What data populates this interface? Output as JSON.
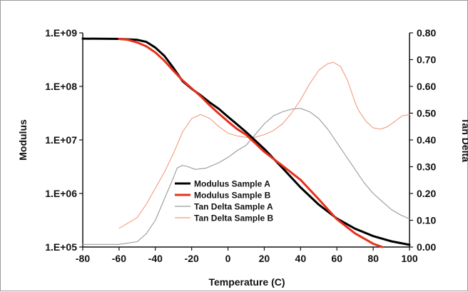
{
  "chart_data": {
    "type": "line",
    "xlabel": "Temperature (C)",
    "ylabel_left": "Modulus",
    "ylabel_right": "Tan Delta",
    "xlim": [
      -80,
      100
    ],
    "x_ticks": [
      "-80",
      "-60",
      "-40",
      "-20",
      "0",
      "20",
      "40",
      "60",
      "80",
      "100"
    ],
    "y_left_scale": "log",
    "y_left_lim": [
      100000,
      1000000000
    ],
    "y_left_ticks": [
      "1.E+05",
      "1.E+06",
      "1.E+07",
      "1.E+08",
      "1.E+09"
    ],
    "y_right_lim": [
      0,
      0.8
    ],
    "y_right_ticks": [
      "0.00",
      "0.10",
      "0.20",
      "0.30",
      "0.40",
      "0.50",
      "0.60",
      "0.70",
      "0.80"
    ],
    "grid": false,
    "legend_position": "lower-left",
    "series": [
      {
        "name": "Modulus Sample A",
        "axis": "left",
        "color": "#000000",
        "style": "thick",
        "points": [
          [
            -80,
            780000000
          ],
          [
            -60,
            770000000
          ],
          [
            -50,
            740000000
          ],
          [
            -45,
            680000000
          ],
          [
            -40,
            530000000
          ],
          [
            -35,
            370000000
          ],
          [
            -30,
            220000000
          ],
          [
            -25,
            125000000
          ],
          [
            -20,
            90000000
          ],
          [
            -15,
            68000000
          ],
          [
            -10,
            50000000
          ],
          [
            -5,
            38000000
          ],
          [
            0,
            27000000
          ],
          [
            5,
            19500000
          ],
          [
            10,
            14000000
          ],
          [
            20,
            6800000
          ],
          [
            30,
            3000000
          ],
          [
            40,
            1300000
          ],
          [
            50,
            620000
          ],
          [
            60,
            340000
          ],
          [
            70,
            220000
          ],
          [
            80,
            160000
          ],
          [
            90,
            128000
          ],
          [
            100,
            110000
          ]
        ]
      },
      {
        "name": "Modulus Sample B",
        "axis": "left",
        "color": "#e8301c",
        "style": "thick",
        "points": [
          [
            -60,
            770000000
          ],
          [
            -55,
            740000000
          ],
          [
            -50,
            660000000
          ],
          [
            -45,
            560000000
          ],
          [
            -40,
            430000000
          ],
          [
            -35,
            300000000
          ],
          [
            -30,
            195000000
          ],
          [
            -25,
            130000000
          ],
          [
            -20,
            92000000
          ],
          [
            -15,
            65000000
          ],
          [
            -10,
            44000000
          ],
          [
            -5,
            31000000
          ],
          [
            0,
            22000000
          ],
          [
            5,
            16000000
          ],
          [
            10,
            12500000
          ],
          [
            20,
            6000000
          ],
          [
            30,
            3300000
          ],
          [
            40,
            1800000
          ],
          [
            50,
            780000
          ],
          [
            60,
            330000
          ],
          [
            70,
            180000
          ],
          [
            80,
            115000
          ],
          [
            85,
            100000
          ]
        ]
      },
      {
        "name": "Tan Delta Sample A",
        "axis": "right",
        "color": "#999999",
        "style": "thin",
        "points": [
          [
            -80,
            0.01
          ],
          [
            -60,
            0.01
          ],
          [
            -50,
            0.02
          ],
          [
            -45,
            0.05
          ],
          [
            -40,
            0.1
          ],
          [
            -35,
            0.18
          ],
          [
            -30,
            0.26
          ],
          [
            -28,
            0.295
          ],
          [
            -25,
            0.305
          ],
          [
            -22,
            0.3
          ],
          [
            -18,
            0.29
          ],
          [
            -12,
            0.295
          ],
          [
            -5,
            0.315
          ],
          [
            0,
            0.335
          ],
          [
            5,
            0.36
          ],
          [
            10,
            0.38
          ],
          [
            15,
            0.42
          ],
          [
            20,
            0.46
          ],
          [
            25,
            0.49
          ],
          [
            30,
            0.505
          ],
          [
            35,
            0.515
          ],
          [
            40,
            0.518
          ],
          [
            45,
            0.505
          ],
          [
            50,
            0.48
          ],
          [
            55,
            0.44
          ],
          [
            60,
            0.39
          ],
          [
            65,
            0.34
          ],
          [
            70,
            0.29
          ],
          [
            75,
            0.24
          ],
          [
            80,
            0.2
          ],
          [
            85,
            0.17
          ],
          [
            90,
            0.14
          ],
          [
            95,
            0.12
          ],
          [
            100,
            0.105
          ]
        ]
      },
      {
        "name": "Tan Delta Sample B",
        "axis": "right",
        "color": "#f39a7c",
        "style": "thin",
        "points": [
          [
            -60,
            0.07
          ],
          [
            -55,
            0.09
          ],
          [
            -50,
            0.11
          ],
          [
            -45,
            0.16
          ],
          [
            -40,
            0.22
          ],
          [
            -35,
            0.28
          ],
          [
            -30,
            0.35
          ],
          [
            -25,
            0.43
          ],
          [
            -20,
            0.48
          ],
          [
            -15,
            0.495
          ],
          [
            -10,
            0.48
          ],
          [
            -5,
            0.45
          ],
          [
            0,
            0.425
          ],
          [
            5,
            0.415
          ],
          [
            10,
            0.41
          ],
          [
            15,
            0.41
          ],
          [
            20,
            0.42
          ],
          [
            25,
            0.435
          ],
          [
            30,
            0.46
          ],
          [
            35,
            0.5
          ],
          [
            40,
            0.55
          ],
          [
            45,
            0.61
          ],
          [
            50,
            0.66
          ],
          [
            55,
            0.685
          ],
          [
            58,
            0.69
          ],
          [
            62,
            0.675
          ],
          [
            66,
            0.62
          ],
          [
            70,
            0.54
          ],
          [
            72,
            0.51
          ],
          [
            76,
            0.47
          ],
          [
            80,
            0.445
          ],
          [
            84,
            0.44
          ],
          [
            88,
            0.45
          ],
          [
            92,
            0.47
          ],
          [
            96,
            0.49
          ],
          [
            100,
            0.495
          ]
        ]
      }
    ]
  }
}
